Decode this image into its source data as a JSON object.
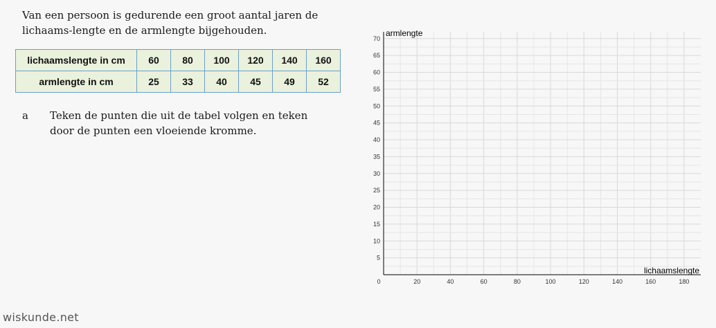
{
  "intro_text": "Van een persoon is gedurende een groot aantal jaren de lichaams-lengte en de armlengte bijgehouden.",
  "table": {
    "rows": [
      {
        "header": "lichaamslengte in cm",
        "values": [
          "60",
          "80",
          "100",
          "120",
          "140",
          "160"
        ]
      },
      {
        "header": "armlengte in cm",
        "values": [
          "25",
          "33",
          "40",
          "45",
          "49",
          "52"
        ]
      }
    ]
  },
  "question": {
    "letter": "a",
    "text": "Teken de punten die uit de tabel volgen en teken door de punten een vloeiende kromme."
  },
  "graph": {
    "x_label": "lichaamslengte",
    "y_label": "armlengte",
    "x_ticks": [
      "0",
      "20",
      "40",
      "60",
      "80",
      "100",
      "120",
      "140",
      "160",
      "180"
    ],
    "y_ticks": [
      "5",
      "10",
      "15",
      "20",
      "25",
      "30",
      "35",
      "40",
      "45",
      "50",
      "55",
      "60",
      "65",
      "70"
    ],
    "x_range": [
      0,
      190
    ],
    "y_range": [
      0,
      72
    ],
    "grid": true
  },
  "footer": "wiskunde.net"
}
